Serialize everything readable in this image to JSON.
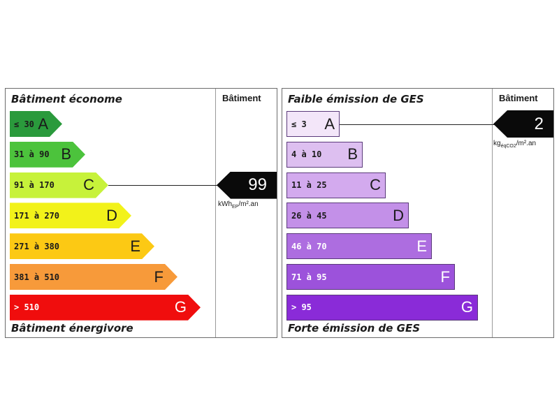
{
  "chart_data": [
    {
      "type": "bar",
      "header": "Bâtiment",
      "top_label": "Bâtiment économe",
      "bottom_label": "Bâtiment énergivore",
      "classes": [
        {
          "letter": "A",
          "range": "≤ 30",
          "color": "#2a9a3c",
          "text_color": "#1a1a1a"
        },
        {
          "letter": "B",
          "range": "31 à 90",
          "color": "#4cc33c",
          "text_color": "#1a1a1a"
        },
        {
          "letter": "C",
          "range": "91 à 170",
          "color": "#c7f23a",
          "text_color": "#1a1a1a"
        },
        {
          "letter": "D",
          "range": "171 à 270",
          "color": "#f2f21a",
          "text_color": "#1a1a1a"
        },
        {
          "letter": "E",
          "range": "271 à 380",
          "color": "#fcc914",
          "text_color": "#1a1a1a"
        },
        {
          "letter": "F",
          "range": "381 à 510",
          "color": "#f79a3a",
          "text_color": "#1a1a1a"
        },
        {
          "letter": "G",
          "range": "> 510",
          "color": "#f00d0d",
          "text_color": "#ffffff"
        }
      ],
      "value": "99",
      "value_class": "C",
      "unit_main": "kWh",
      "unit_sub": "EP",
      "unit_tail": "/m².an"
    },
    {
      "type": "bar",
      "header": "Bâtiment",
      "top_label": "Faible émission de GES",
      "bottom_label": "Forte émission de GES",
      "classes": [
        {
          "letter": "A",
          "range": "≤ 3",
          "color": "#f3e6f9",
          "text_color": "#1a1a1a"
        },
        {
          "letter": "B",
          "range": "4 à 10",
          "color": "#ddbff0",
          "text_color": "#1a1a1a"
        },
        {
          "letter": "C",
          "range": "11 à 25",
          "color": "#d3aaee",
          "text_color": "#1a1a1a"
        },
        {
          "letter": "D",
          "range": "26 à 45",
          "color": "#c390e8",
          "text_color": "#1a1a1a"
        },
        {
          "letter": "E",
          "range": "46 à 70",
          "color": "#ad6de0",
          "text_color": "#ffffff"
        },
        {
          "letter": "F",
          "range": "71 à 95",
          "color": "#9c52db",
          "text_color": "#ffffff"
        },
        {
          "letter": "G",
          "range": "> 95",
          "color": "#8a2bd8",
          "text_color": "#ffffff"
        }
      ],
      "value": "2",
      "value_class": "A",
      "unit_main": "kg",
      "unit_sub": "éqCO2",
      "unit_tail": "/m².an"
    }
  ]
}
